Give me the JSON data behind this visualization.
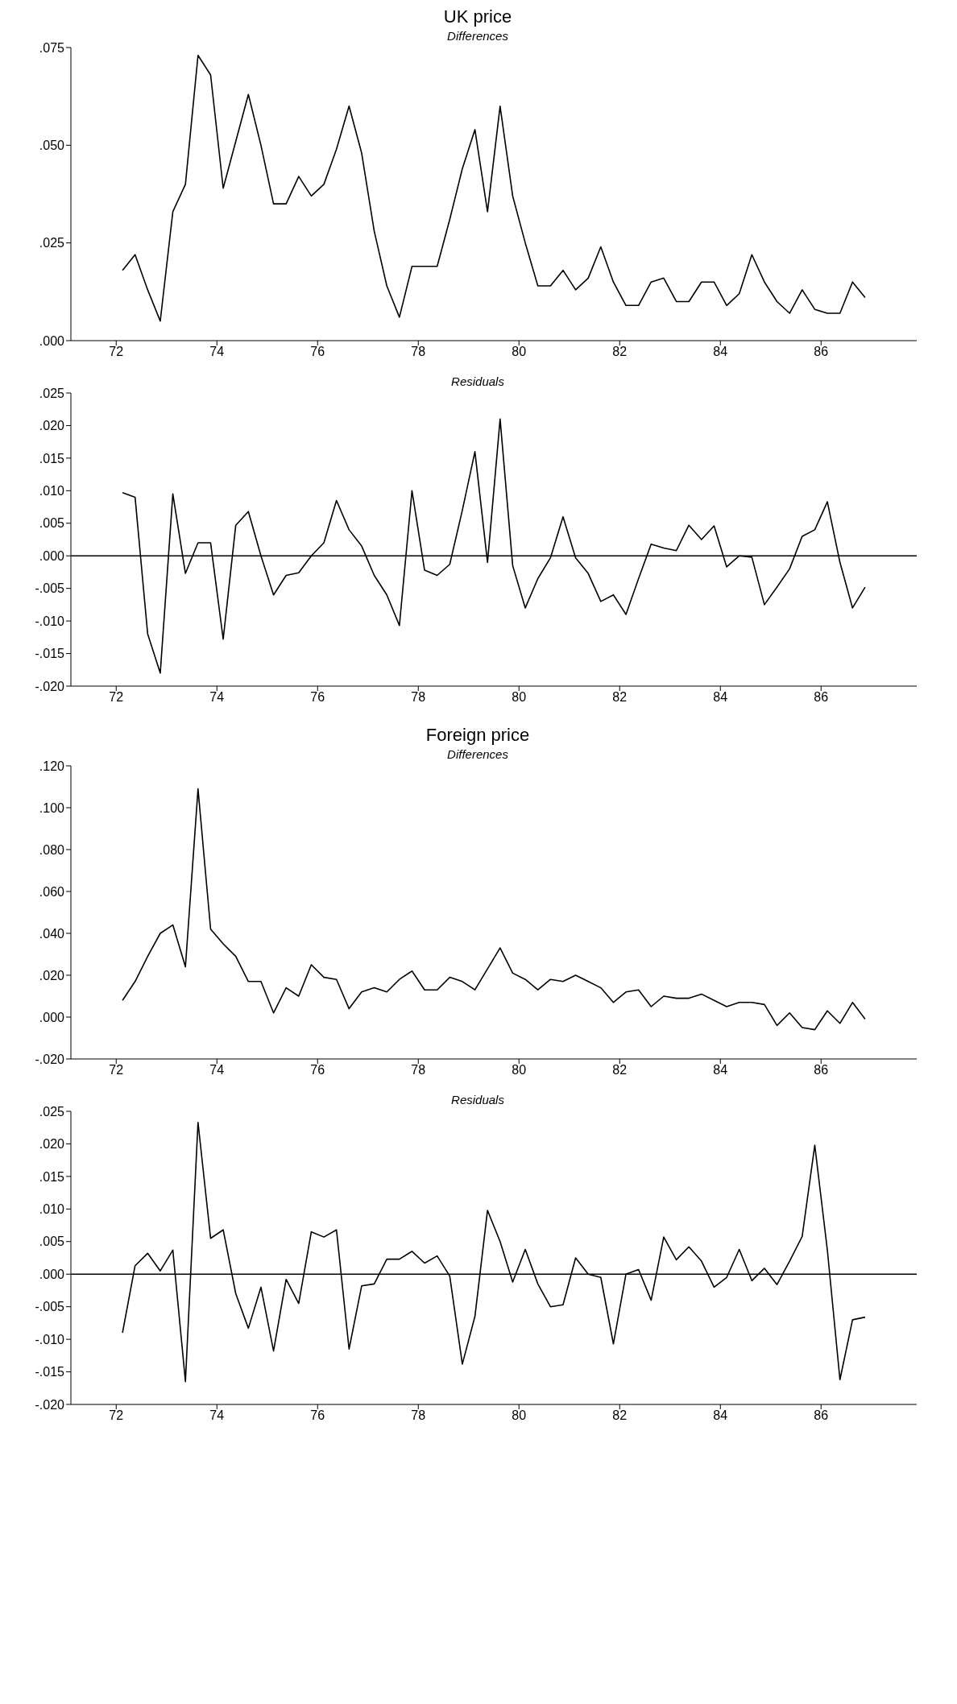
{
  "chart_data": [
    {
      "type": "line",
      "title": "UK price",
      "subtitle": "Differences",
      "x": [
        72.125,
        72.375,
        72.625,
        72.875,
        73.125,
        73.375,
        73.625,
        73.875,
        74.125,
        74.375,
        74.625,
        74.875,
        75.125,
        75.375,
        75.625,
        75.875,
        76.125,
        76.375,
        76.625,
        76.875,
        77.125,
        77.375,
        77.625,
        77.875,
        78.125,
        78.375,
        78.625,
        78.875,
        79.125,
        79.375,
        79.625,
        79.875,
        80.125,
        80.375,
        80.625,
        80.875,
        81.125,
        81.375,
        81.625,
        81.875,
        82.125,
        82.375,
        82.625,
        82.875,
        83.125,
        83.375,
        83.625,
        83.875,
        84.125,
        84.375,
        84.625,
        84.875,
        85.125,
        85.375,
        85.625,
        85.875,
        86.125,
        86.375,
        86.625,
        86.875
      ],
      "series": [
        {
          "color": "#000000",
          "values": [
            0.018,
            0.022,
            0.013,
            0.005,
            0.033,
            0.04,
            0.073,
            0.068,
            0.039,
            0.051,
            0.063,
            0.05,
            0.035,
            0.035,
            0.042,
            0.037,
            0.04,
            0.049,
            0.06,
            0.048,
            0.028,
            0.014,
            0.006,
            0.019,
            0.019,
            0.019,
            0.031,
            0.044,
            0.054,
            0.033,
            0.06,
            0.037,
            0.025,
            0.014,
            0.014,
            0.018,
            0.013,
            0.016,
            0.024,
            0.015,
            0.009,
            0.009,
            0.015,
            0.016,
            0.01,
            0.01,
            0.015,
            0.015,
            0.009,
            0.012,
            0.022,
            0.015,
            0.01,
            0.007,
            0.013,
            0.008,
            0.007,
            0.007,
            0.015,
            0.011
          ]
        }
      ],
      "xlim": [
        71.1,
        87.9
      ],
      "xticks": [
        72,
        74,
        76,
        78,
        80,
        82,
        84,
        86
      ],
      "ylim": [
        0,
        0.075
      ],
      "yticks": [
        {
          "value": 0,
          "label": ".000"
        },
        {
          "value": 0.025,
          "label": ".025"
        },
        {
          "value": 0.05,
          "label": ".050"
        },
        {
          "value": 0.075,
          "label": ".075"
        }
      ],
      "grid": false,
      "marker": "none",
      "line_style": "solid"
    },
    {
      "type": "line",
      "subtitle": "Residuals",
      "x": [
        72.125,
        72.375,
        72.625,
        72.875,
        73.125,
        73.375,
        73.625,
        73.875,
        74.125,
        74.375,
        74.625,
        74.875,
        75.125,
        75.375,
        75.625,
        75.875,
        76.125,
        76.375,
        76.625,
        76.875,
        77.125,
        77.375,
        77.625,
        77.875,
        78.125,
        78.375,
        78.625,
        78.875,
        79.125,
        79.375,
        79.625,
        79.875,
        80.125,
        80.375,
        80.625,
        80.875,
        81.125,
        81.375,
        81.625,
        81.875,
        82.125,
        82.375,
        82.625,
        82.875,
        83.125,
        83.375,
        83.625,
        83.875,
        84.125,
        84.375,
        84.625,
        84.875,
        85.125,
        85.375,
        85.625,
        85.875,
        86.125,
        86.375,
        86.625,
        86.875
      ],
      "series": [
        {
          "color": "#000000",
          "values": [
            0.0097,
            0.009,
            -0.012,
            -0.018,
            0.0095,
            -0.0027,
            0.002,
            0.002,
            -0.0128,
            0.0047,
            0.0068,
            0.0,
            -0.006,
            -0.003,
            -0.0026,
            0.0,
            0.002,
            0.0085,
            0.004,
            0.0015,
            -0.003,
            -0.006,
            -0.0107,
            0.01,
            -0.0022,
            -0.003,
            -0.0013,
            0.007,
            0.016,
            -0.001,
            0.021,
            -0.0015,
            -0.008,
            -0.0035,
            -0.0003,
            0.006,
            -0.0003,
            -0.0027,
            -0.007,
            -0.006,
            -0.009,
            -0.0035,
            0.0018,
            0.0012,
            0.0008,
            0.0047,
            0.0025,
            0.0046,
            -0.0017,
            0.0,
            -0.0002,
            -0.0075,
            -0.0048,
            -0.002,
            0.003,
            0.004,
            0.0083,
            -0.001,
            -0.008,
            -0.0048
          ]
        }
      ],
      "xlim": [
        71.1,
        87.9
      ],
      "xticks": [
        72,
        74,
        76,
        78,
        80,
        82,
        84,
        86
      ],
      "ylim": [
        -0.02,
        0.025
      ],
      "yticks": [
        {
          "value": -0.02,
          "label": "-.020"
        },
        {
          "value": -0.015,
          "label": "-.015"
        },
        {
          "value": -0.01,
          "label": "-.010"
        },
        {
          "value": -0.005,
          "label": "-.005"
        },
        {
          "value": 0,
          "label": ".000"
        },
        {
          "value": 0.005,
          "label": ".005"
        },
        {
          "value": 0.01,
          "label": ".010"
        },
        {
          "value": 0.015,
          "label": ".015"
        },
        {
          "value": 0.02,
          "label": ".020"
        },
        {
          "value": 0.025,
          "label": ".025"
        }
      ],
      "ref_lines": [
        {
          "axis": "y",
          "value": 0,
          "color": "#000000"
        }
      ],
      "grid": false,
      "marker": "none",
      "line_style": "solid"
    },
    {
      "type": "line",
      "title": "Foreign price",
      "subtitle": "Differences",
      "x": [
        72.125,
        72.375,
        72.625,
        72.875,
        73.125,
        73.375,
        73.625,
        73.875,
        74.125,
        74.375,
        74.625,
        74.875,
        75.125,
        75.375,
        75.625,
        75.875,
        76.125,
        76.375,
        76.625,
        76.875,
        77.125,
        77.375,
        77.625,
        77.875,
        78.125,
        78.375,
        78.625,
        78.875,
        79.125,
        79.375,
        79.625,
        79.875,
        80.125,
        80.375,
        80.625,
        80.875,
        81.125,
        81.375,
        81.625,
        81.875,
        82.125,
        82.375,
        82.625,
        82.875,
        83.125,
        83.375,
        83.625,
        83.875,
        84.125,
        84.375,
        84.625,
        84.875,
        85.125,
        85.375,
        85.625,
        85.875,
        86.125,
        86.375,
        86.625,
        86.875
      ],
      "series": [
        {
          "color": "#000000",
          "values": [
            0.008,
            0.017,
            0.029,
            0.04,
            0.044,
            0.024,
            0.109,
            0.042,
            0.035,
            0.029,
            0.017,
            0.017,
            0.002,
            0.014,
            0.01,
            0.025,
            0.019,
            0.018,
            0.004,
            0.012,
            0.014,
            0.012,
            0.018,
            0.022,
            0.013,
            0.013,
            0.019,
            0.017,
            0.013,
            0.023,
            0.033,
            0.021,
            0.018,
            0.013,
            0.018,
            0.017,
            0.02,
            0.017,
            0.014,
            0.007,
            0.012,
            0.013,
            0.005,
            0.01,
            0.009,
            0.009,
            0.011,
            0.008,
            0.005,
            0.007,
            0.007,
            0.006,
            -0.004,
            0.002,
            -0.005,
            -0.006,
            0.003,
            -0.003,
            0.007,
            -0.001
          ]
        }
      ],
      "xlim": [
        71.1,
        87.9
      ],
      "xticks": [
        72,
        74,
        76,
        78,
        80,
        82,
        84,
        86
      ],
      "ylim": [
        -0.02,
        0.12
      ],
      "yticks": [
        {
          "value": -0.02,
          "label": "-.020"
        },
        {
          "value": 0,
          "label": ".000"
        },
        {
          "value": 0.02,
          "label": ".020"
        },
        {
          "value": 0.04,
          "label": ".040"
        },
        {
          "value": 0.06,
          "label": ".060"
        },
        {
          "value": 0.08,
          "label": ".080"
        },
        {
          "value": 0.1,
          "label": ".100"
        },
        {
          "value": 0.12,
          "label": ".120"
        }
      ],
      "grid": false,
      "marker": "none",
      "line_style": "solid"
    },
    {
      "type": "line",
      "subtitle": "Residuals",
      "x": [
        72.125,
        72.375,
        72.625,
        72.875,
        73.125,
        73.375,
        73.625,
        73.875,
        74.125,
        74.375,
        74.625,
        74.875,
        75.125,
        75.375,
        75.625,
        75.875,
        76.125,
        76.375,
        76.625,
        76.875,
        77.125,
        77.375,
        77.625,
        77.875,
        78.125,
        78.375,
        78.625,
        78.875,
        79.125,
        79.375,
        79.625,
        79.875,
        80.125,
        80.375,
        80.625,
        80.875,
        81.125,
        81.375,
        81.625,
        81.875,
        82.125,
        82.375,
        82.625,
        82.875,
        83.125,
        83.375,
        83.625,
        83.875,
        84.125,
        84.375,
        84.625,
        84.875,
        85.125,
        85.375,
        85.625,
        85.875,
        86.125,
        86.375,
        86.625,
        86.875
      ],
      "series": [
        {
          "color": "#000000",
          "values": [
            -0.009,
            0.0013,
            0.0032,
            0.0005,
            0.0037,
            -0.0165,
            0.0233,
            0.0055,
            0.0068,
            -0.003,
            -0.0083,
            -0.002,
            -0.0118,
            -0.0008,
            -0.0045,
            0.0065,
            0.0057,
            0.0068,
            -0.0115,
            -0.0018,
            -0.0015,
            0.0023,
            0.0023,
            0.0035,
            0.0017,
            0.0028,
            -0.0003,
            -0.0138,
            -0.0065,
            0.0098,
            0.005,
            -0.0012,
            0.0038,
            -0.0015,
            -0.005,
            -0.0047,
            0.0025,
            0.0,
            -0.0005,
            -0.0107,
            0.0,
            0.0007,
            -0.004,
            0.0057,
            0.0022,
            0.0042,
            0.002,
            -0.002,
            -0.0005,
            0.0038,
            -0.001,
            0.0009,
            -0.0016,
            0.002,
            0.0058,
            0.0198,
            0.0037,
            -0.0162,
            -0.007,
            -0.0066
          ]
        }
      ],
      "xlim": [
        71.1,
        87.9
      ],
      "xticks": [
        72,
        74,
        76,
        78,
        80,
        82,
        84,
        86
      ],
      "ylim": [
        -0.02,
        0.025
      ],
      "yticks": [
        {
          "value": -0.02,
          "label": "-.020"
        },
        {
          "value": -0.015,
          "label": "-.015"
        },
        {
          "value": -0.01,
          "label": "-.010"
        },
        {
          "value": -0.005,
          "label": "-.005"
        },
        {
          "value": 0,
          "label": ".000"
        },
        {
          "value": 0.005,
          "label": ".005"
        },
        {
          "value": 0.01,
          "label": ".010"
        },
        {
          "value": 0.015,
          "label": ".015"
        },
        {
          "value": 0.02,
          "label": ".020"
        },
        {
          "value": 0.025,
          "label": ".025"
        }
      ],
      "ref_lines": [
        {
          "axis": "y",
          "value": 0,
          "color": "#000000"
        }
      ],
      "grid": false,
      "marker": "none",
      "line_style": "solid"
    }
  ]
}
